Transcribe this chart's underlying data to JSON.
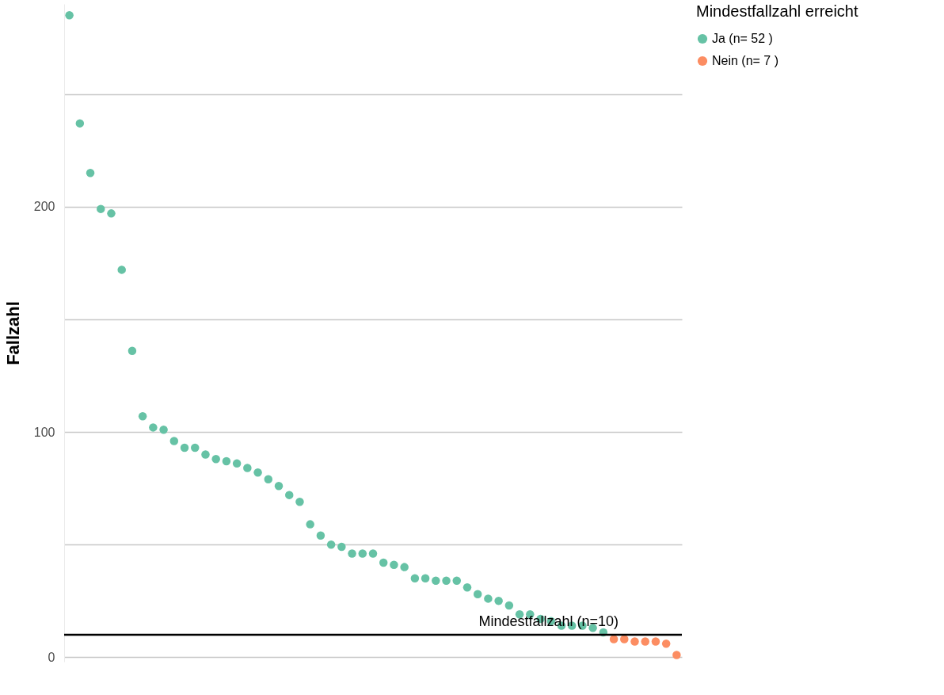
{
  "chart_data": {
    "type": "scatter",
    "ylabel": "Fallzahl",
    "legend_title": "Mindestfallzahl erreicht",
    "legend": "right",
    "marker": "circle",
    "categories": [
      null,
      null,
      null,
      null,
      null,
      null,
      null,
      null,
      null,
      null,
      null,
      null,
      null,
      null,
      null,
      null,
      null,
      null,
      null,
      null,
      null,
      null,
      null,
      null,
      null,
      null,
      null,
      null,
      null,
      null,
      null,
      null,
      null,
      null,
      null,
      null,
      null,
      null,
      null,
      null,
      null,
      null,
      null,
      null,
      null,
      null,
      null,
      null,
      null,
      null,
      null,
      null,
      null,
      null,
      null,
      null,
      null,
      null,
      null
    ],
    "series": [
      {
        "name": "Ja (n= 52 )",
        "color": "#66c2a5",
        "values": [
          285,
          237,
          215,
          199,
          197,
          172,
          136,
          107,
          102,
          101,
          96,
          93,
          93,
          90,
          88,
          87,
          86,
          84,
          82,
          79,
          76,
          72,
          69,
          59,
          54,
          50,
          49,
          46,
          46,
          46,
          42,
          41,
          40,
          35,
          35,
          34,
          34,
          34,
          31,
          28,
          26,
          25,
          23,
          19,
          19,
          17,
          16,
          14,
          14,
          14,
          13,
          11,
          null,
          null,
          null,
          null,
          null,
          null,
          null
        ]
      },
      {
        "name": "Nein (n= 7 )",
        "color": "#fc8d62",
        "values": [
          null,
          null,
          null,
          null,
          null,
          null,
          null,
          null,
          null,
          null,
          null,
          null,
          null,
          null,
          null,
          null,
          null,
          null,
          null,
          null,
          null,
          null,
          null,
          null,
          null,
          null,
          null,
          null,
          null,
          null,
          null,
          null,
          null,
          null,
          null,
          null,
          null,
          null,
          null,
          null,
          null,
          null,
          null,
          null,
          null,
          null,
          null,
          null,
          null,
          null,
          null,
          null,
          8,
          8,
          7,
          7,
          7,
          6,
          1
        ]
      }
    ],
    "ylim": [
      -2,
      290
    ],
    "yticks": [
      0,
      {
        "value": 50,
        "label": null
      },
      100,
      {
        "value": 150,
        "label": null
      },
      200,
      {
        "value": 250,
        "label": null
      }
    ],
    "grid": true,
    "ref_lines": [
      {
        "axis": "y",
        "value": 10,
        "label": "Mindestfallzahl (n=10)",
        "color": "#000000"
      }
    ]
  }
}
